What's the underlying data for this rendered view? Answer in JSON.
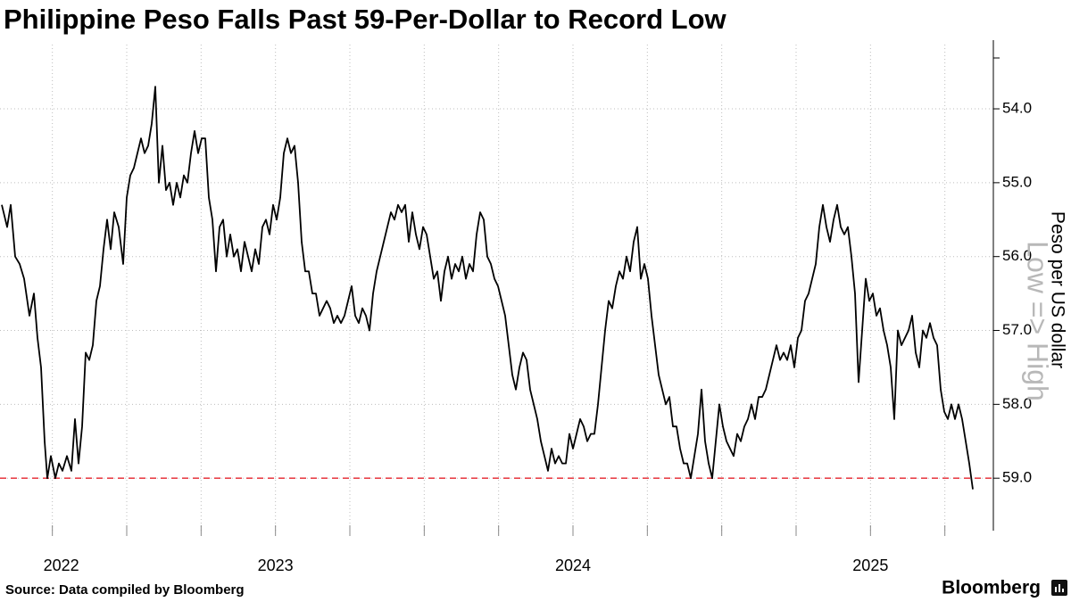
{
  "chart_data": {
    "type": "line",
    "title": "Philippine Peso Falls Past 59-Per-Dollar to Record Low",
    "y_label": "Peso per US dollar",
    "annotation": "Low => High",
    "source": "Source: Data compiled by Bloomberg",
    "brand": "Bloomberg",
    "color": "#000000",
    "y_axis_side": "right",
    "y_inverted": true,
    "grid": true,
    "xlim": [
      2022.574,
      2025.913
    ],
    "ylim": [
      53.07,
      59.71
    ],
    "xticks": [
      {
        "value": 2022.78,
        "label": "2022"
      },
      {
        "value": 2023.5,
        "label": "2023"
      },
      {
        "value": 2024.5,
        "label": "2024"
      },
      {
        "value": 2025.5,
        "label": "2025"
      }
    ],
    "xgrid": [
      2022.75,
      2023,
      2023.25,
      2023.5,
      2023.75,
      2024,
      2024.25,
      2024.5,
      2024.75,
      2025,
      2025.25,
      2025.5,
      2025.75
    ],
    "yticks": [
      {
        "value": 54,
        "label": "54.0"
      },
      {
        "value": 55,
        "label": "55.0"
      },
      {
        "value": 56,
        "label": "56.0"
      },
      {
        "value": 57,
        "label": "57.0"
      },
      {
        "value": 58,
        "label": "58.0"
      },
      {
        "value": 59,
        "label": "59.0"
      }
    ],
    "reference_line": {
      "value": 59,
      "color": "#e8434b"
    },
    "x": [
      2022.58,
      2022.598,
      2022.61,
      2022.625,
      2022.64,
      2022.655,
      2022.673,
      2022.688,
      2022.7,
      2022.712,
      2022.724,
      2022.733,
      2022.745,
      2022.76,
      2022.772,
      2022.784,
      2022.799,
      2022.814,
      2022.826,
      2022.838,
      2022.85,
      2022.862,
      2022.874,
      2022.886,
      2022.898,
      2022.91,
      2022.922,
      2022.934,
      2022.946,
      2022.958,
      2022.973,
      2022.988,
      2023.0,
      2023.012,
      2023.024,
      2023.036,
      2023.048,
      2023.06,
      2023.072,
      2023.084,
      2023.096,
      2023.108,
      2023.12,
      2023.132,
      2023.144,
      2023.156,
      2023.168,
      2023.18,
      2023.192,
      2023.204,
      2023.216,
      2023.228,
      2023.24,
      2023.252,
      2023.264,
      2023.276,
      2023.288,
      2023.3,
      2023.312,
      2023.324,
      2023.336,
      2023.348,
      2023.36,
      2023.372,
      2023.384,
      2023.396,
      2023.408,
      2023.42,
      2023.432,
      2023.444,
      2023.456,
      2023.468,
      2023.48,
      2023.492,
      2023.504,
      2023.516,
      2023.528,
      2023.54,
      2023.552,
      2023.564,
      2023.576,
      2023.588,
      2023.6,
      2023.612,
      2023.624,
      2023.636,
      2023.648,
      2023.66,
      2023.672,
      2023.684,
      2023.696,
      2023.708,
      2023.72,
      2023.732,
      2023.744,
      2023.756,
      2023.768,
      2023.78,
      2023.792,
      2023.804,
      2023.816,
      2023.828,
      2023.84,
      2023.852,
      2023.864,
      2023.876,
      2023.888,
      2023.9,
      2023.912,
      2023.924,
      2023.936,
      2023.948,
      2023.96,
      2023.972,
      2023.984,
      2023.996,
      2024.008,
      2024.02,
      2024.032,
      2024.044,
      2024.056,
      2024.068,
      2024.08,
      2024.092,
      2024.104,
      2024.116,
      2024.128,
      2024.14,
      2024.152,
      2024.164,
      2024.176,
      2024.188,
      2024.2,
      2024.212,
      2024.224,
      2024.236,
      2024.248,
      2024.26,
      2024.272,
      2024.284,
      2024.296,
      2024.308,
      2024.32,
      2024.332,
      2024.344,
      2024.356,
      2024.368,
      2024.38,
      2024.392,
      2024.404,
      2024.416,
      2024.428,
      2024.44,
      2024.452,
      2024.464,
      2024.476,
      2024.488,
      2024.5,
      2024.512,
      2024.524,
      2024.536,
      2024.548,
      2024.56,
      2024.572,
      2024.584,
      2024.596,
      2024.608,
      2024.62,
      2024.632,
      2024.644,
      2024.656,
      2024.668,
      2024.68,
      2024.692,
      2024.704,
      2024.716,
      2024.728,
      2024.74,
      2024.752,
      2024.764,
      2024.776,
      2024.788,
      2024.8,
      2024.812,
      2024.824,
      2024.836,
      2024.848,
      2024.86,
      2024.872,
      2024.884,
      2024.896,
      2024.908,
      2024.92,
      2024.932,
      2024.944,
      2024.956,
      2024.968,
      2024.98,
      2024.992,
      2025.004,
      2025.016,
      2025.028,
      2025.04,
      2025.052,
      2025.064,
      2025.076,
      2025.088,
      2025.1,
      2025.112,
      2025.124,
      2025.136,
      2025.148,
      2025.16,
      2025.172,
      2025.184,
      2025.196,
      2025.208,
      2025.22,
      2025.232,
      2025.244,
      2025.256,
      2025.268,
      2025.28,
      2025.292,
      2025.304,
      2025.316,
      2025.328,
      2025.34,
      2025.352,
      2025.364,
      2025.376,
      2025.388,
      2025.4,
      2025.412,
      2025.424,
      2025.436,
      2025.448,
      2025.46,
      2025.472,
      2025.484,
      2025.496,
      2025.508,
      2025.52,
      2025.532,
      2025.544,
      2025.556,
      2025.568,
      2025.58,
      2025.592,
      2025.604,
      2025.616,
      2025.628,
      2025.64,
      2025.652,
      2025.664,
      2025.676,
      2025.688,
      2025.7,
      2025.712,
      2025.724,
      2025.736,
      2025.748,
      2025.76,
      2025.772,
      2025.784,
      2025.796,
      2025.808,
      2025.82,
      2025.832,
      2025.844
    ],
    "values": [
      55.3,
      55.6,
      55.3,
      56.0,
      56.1,
      56.3,
      56.8,
      56.5,
      57.1,
      57.5,
      58.5,
      59.0,
      58.7,
      59.0,
      58.8,
      58.9,
      58.7,
      58.9,
      58.2,
      58.8,
      58.3,
      57.3,
      57.4,
      57.2,
      56.6,
      56.4,
      55.9,
      55.5,
      55.9,
      55.4,
      55.6,
      56.1,
      55.2,
      54.9,
      54.8,
      54.6,
      54.4,
      54.6,
      54.5,
      54.2,
      53.7,
      55.0,
      54.5,
      55.1,
      55.0,
      55.3,
      55.0,
      55.2,
      54.9,
      55.0,
      54.6,
      54.3,
      54.6,
      54.4,
      54.4,
      55.2,
      55.5,
      56.2,
      55.6,
      55.5,
      56.0,
      55.7,
      56.0,
      55.9,
      56.2,
      55.8,
      56.0,
      56.2,
      55.9,
      56.1,
      55.6,
      55.5,
      55.7,
      55.3,
      55.5,
      55.2,
      54.6,
      54.4,
      54.6,
      54.5,
      55.0,
      55.8,
      56.2,
      56.2,
      56.5,
      56.5,
      56.8,
      56.7,
      56.6,
      56.7,
      56.9,
      56.8,
      56.9,
      56.8,
      56.6,
      56.4,
      56.8,
      56.9,
      56.7,
      56.8,
      57.0,
      56.5,
      56.2,
      56.0,
      55.8,
      55.6,
      55.4,
      55.5,
      55.3,
      55.4,
      55.3,
      55.8,
      55.4,
      55.7,
      55.9,
      55.6,
      55.7,
      56.0,
      56.3,
      56.2,
      56.6,
      56.2,
      56.0,
      56.3,
      56.1,
      56.2,
      56.0,
      56.3,
      56.1,
      56.2,
      55.7,
      55.4,
      55.5,
      56.0,
      56.1,
      56.3,
      56.4,
      56.6,
      56.8,
      57.2,
      57.6,
      57.8,
      57.5,
      57.3,
      57.4,
      57.8,
      58.0,
      58.2,
      58.5,
      58.7,
      58.9,
      58.6,
      58.8,
      58.7,
      58.8,
      58.8,
      58.4,
      58.6,
      58.4,
      58.2,
      58.3,
      58.5,
      58.4,
      58.4,
      58.0,
      57.5,
      57.0,
      56.6,
      56.7,
      56.4,
      56.2,
      56.3,
      56.0,
      56.2,
      55.8,
      55.6,
      56.3,
      56.1,
      56.3,
      56.8,
      57.2,
      57.6,
      57.8,
      58.0,
      57.9,
      58.3,
      58.3,
      58.6,
      58.8,
      58.8,
      59.0,
      58.7,
      58.4,
      57.8,
      58.5,
      58.8,
      59.0,
      58.5,
      58.0,
      58.3,
      58.5,
      58.6,
      58.7,
      58.4,
      58.5,
      58.3,
      58.2,
      58.0,
      58.2,
      57.9,
      57.9,
      57.8,
      57.6,
      57.4,
      57.2,
      57.4,
      57.3,
      57.4,
      57.2,
      57.5,
      57.1,
      57.0,
      56.6,
      56.5,
      56.3,
      56.1,
      55.6,
      55.3,
      55.6,
      55.8,
      55.5,
      55.3,
      55.6,
      55.7,
      55.6,
      56.0,
      56.5,
      57.7,
      57.0,
      56.3,
      56.6,
      56.5,
      56.8,
      56.7,
      57.0,
      57.2,
      57.5,
      58.2,
      57.0,
      57.2,
      57.1,
      57.0,
      56.8,
      57.3,
      57.5,
      57.0,
      57.1,
      56.9,
      57.1,
      57.2,
      57.8,
      58.1,
      58.2,
      58.0,
      58.2,
      58.0,
      58.2,
      58.5,
      58.8,
      59.15
    ]
  }
}
